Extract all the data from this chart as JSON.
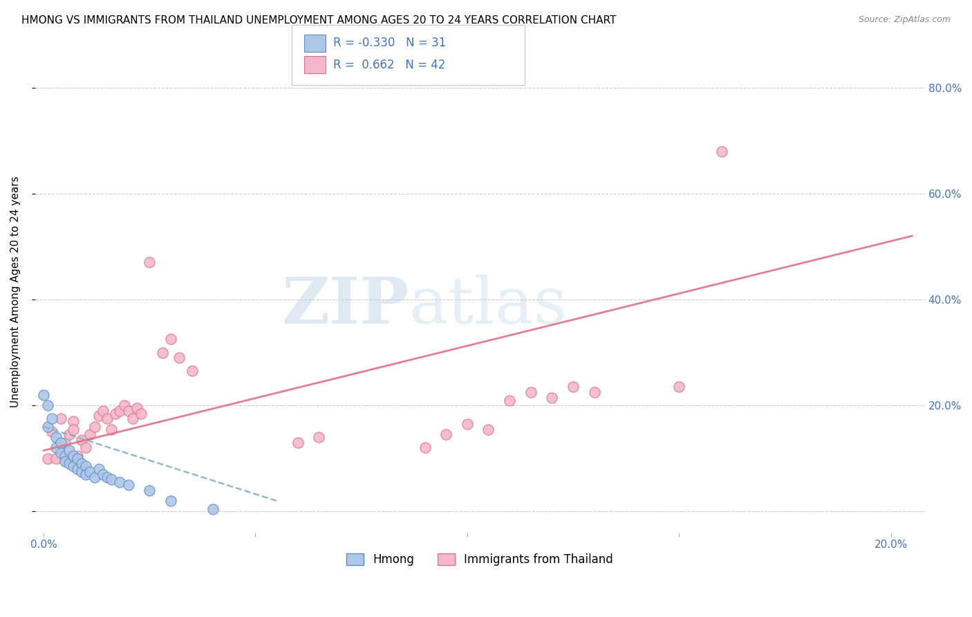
{
  "title": "HMONG VS IMMIGRANTS FROM THAILAND UNEMPLOYMENT AMONG AGES 20 TO 24 YEARS CORRELATION CHART",
  "source": "Source: ZipAtlas.com",
  "ylabel": "Unemployment Among Ages 20 to 24 years",
  "xlim": [
    -0.002,
    0.208
  ],
  "ylim": [
    -0.04,
    0.87
  ],
  "x_ticks": [
    0.0,
    0.05,
    0.1,
    0.15,
    0.2
  ],
  "y_ticks": [
    0.0,
    0.2,
    0.4,
    0.6,
    0.8
  ],
  "y_tick_labels": [
    "",
    "20.0%",
    "40.0%",
    "60.0%",
    "80.0%"
  ],
  "tick_color": "#4472c4",
  "hmong_color": "#aec6e8",
  "hmong_edge_color": "#5b8ec4",
  "thailand_color": "#f5b8cb",
  "thailand_edge_color": "#e0708a",
  "hmong_R": -0.33,
  "hmong_N": 31,
  "thailand_R": 0.662,
  "thailand_N": 42,
  "legend_text_color": "#4472c4",
  "hmong_points_x": [
    0.0,
    0.001,
    0.001,
    0.002,
    0.003,
    0.003,
    0.004,
    0.004,
    0.005,
    0.005,
    0.006,
    0.006,
    0.007,
    0.007,
    0.008,
    0.008,
    0.009,
    0.009,
    0.01,
    0.01,
    0.011,
    0.012,
    0.013,
    0.014,
    0.015,
    0.016,
    0.018,
    0.02,
    0.025,
    0.03,
    0.04
  ],
  "hmong_points_y": [
    0.22,
    0.2,
    0.16,
    0.175,
    0.14,
    0.12,
    0.13,
    0.11,
    0.105,
    0.095,
    0.115,
    0.09,
    0.105,
    0.085,
    0.1,
    0.08,
    0.09,
    0.075,
    0.085,
    0.07,
    0.075,
    0.065,
    0.08,
    0.07,
    0.065,
    0.06,
    0.055,
    0.05,
    0.04,
    0.02,
    0.005
  ],
  "thailand_points_x": [
    0.001,
    0.002,
    0.003,
    0.004,
    0.005,
    0.006,
    0.007,
    0.007,
    0.008,
    0.009,
    0.01,
    0.011,
    0.012,
    0.013,
    0.014,
    0.015,
    0.016,
    0.017,
    0.018,
    0.019,
    0.02,
    0.021,
    0.022,
    0.023,
    0.025,
    0.028,
    0.03,
    0.032,
    0.035,
    0.06,
    0.065,
    0.09,
    0.095,
    0.1,
    0.105,
    0.11,
    0.115,
    0.12,
    0.125,
    0.13,
    0.15,
    0.16
  ],
  "thailand_points_y": [
    0.1,
    0.15,
    0.1,
    0.175,
    0.13,
    0.145,
    0.17,
    0.155,
    0.105,
    0.135,
    0.12,
    0.145,
    0.16,
    0.18,
    0.19,
    0.175,
    0.155,
    0.185,
    0.19,
    0.2,
    0.19,
    0.175,
    0.195,
    0.185,
    0.47,
    0.3,
    0.325,
    0.29,
    0.265,
    0.13,
    0.14,
    0.12,
    0.145,
    0.165,
    0.155,
    0.21,
    0.225,
    0.215,
    0.235,
    0.225,
    0.235,
    0.68
  ],
  "hmong_trendline_x": [
    0.0,
    0.055
  ],
  "hmong_trendline_y": [
    0.16,
    0.02
  ],
  "thailand_trendline_x": [
    0.0,
    0.205
  ],
  "thailand_trendline_y": [
    0.115,
    0.52
  ],
  "watermark_zip": "ZIP",
  "watermark_atlas": "atlas",
  "background_color": "#ffffff",
  "grid_color": "#cccccc",
  "title_fontsize": 11,
  "axis_label_fontsize": 11,
  "tick_fontsize": 11,
  "source_fontsize": 9,
  "legend_fontsize": 12,
  "marker_size": 120
}
